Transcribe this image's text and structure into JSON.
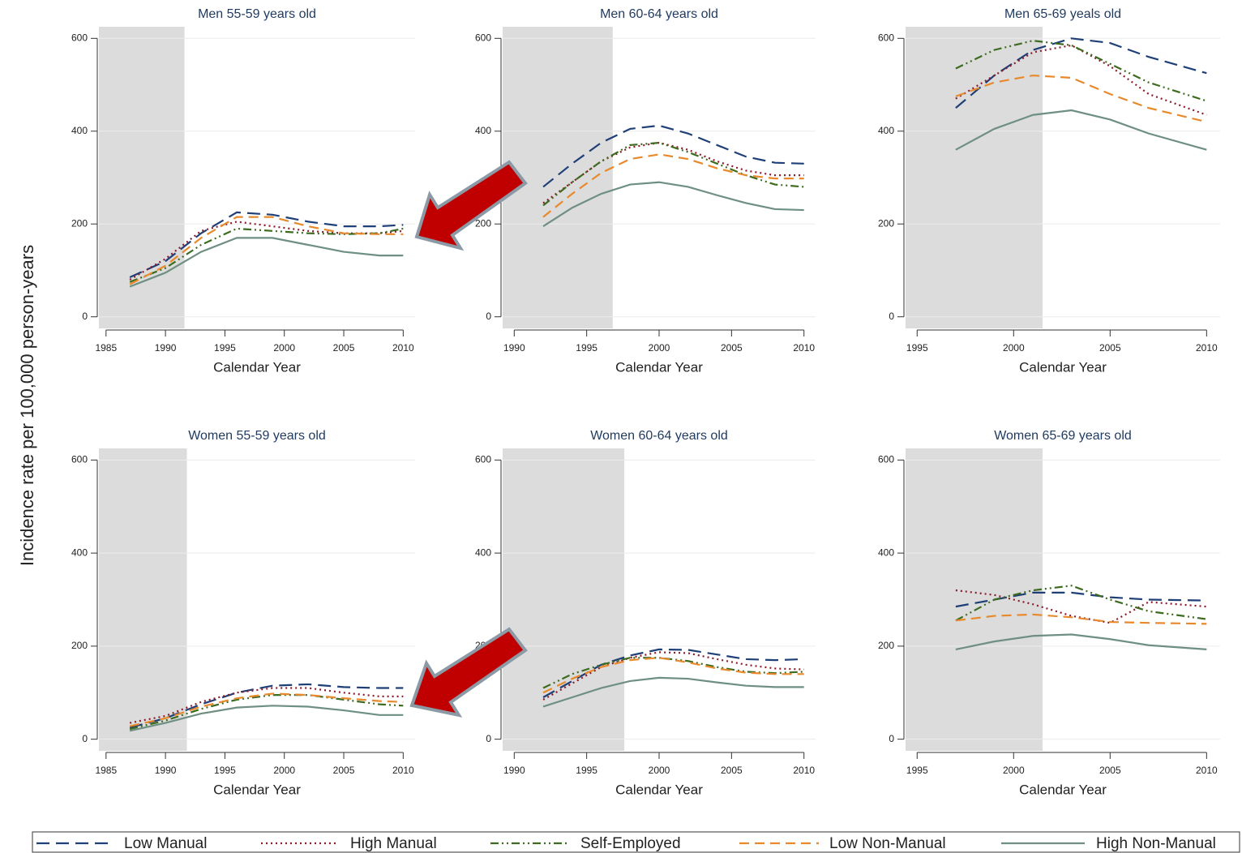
{
  "ylabel": "Incidence rate per 100,000 person-years",
  "chart_data": [
    {
      "type": "line",
      "title": "Men 55-59 years old",
      "xlabel": "Calendar Year",
      "x": [
        1987,
        1990,
        1993,
        1996,
        1999,
        2002,
        2005,
        2008,
        2010
      ],
      "xlim": [
        1984.4,
        2011
      ],
      "xticks": [
        1985,
        1990,
        1995,
        2000,
        2005,
        2010
      ],
      "ylim": [
        -25,
        625
      ],
      "yticks": [
        0,
        200,
        400,
        600
      ],
      "grid": true,
      "shade_until": 1991.6,
      "series": [
        {
          "name": "Low Manual",
          "color": "#1f3f77",
          "style": "long-dash",
          "values": [
            85,
            120,
            180,
            225,
            220,
            205,
            195,
            195,
            198
          ]
        },
        {
          "name": "High Manual",
          "color": "#8b1a2a",
          "style": "dotted",
          "values": [
            80,
            125,
            185,
            205,
            195,
            185,
            180,
            180,
            185
          ]
        },
        {
          "name": "Self-Employed",
          "color": "#3d6b1f",
          "style": "dash-dot",
          "values": [
            75,
            105,
            155,
            190,
            185,
            180,
            178,
            180,
            190
          ]
        },
        {
          "name": "Low Non-Manual",
          "color": "#e8892c",
          "style": "dashed",
          "values": [
            70,
            110,
            170,
            215,
            215,
            195,
            180,
            178,
            178
          ]
        },
        {
          "name": "High Non-Manual",
          "color": "#6e8f82",
          "style": "solid",
          "values": [
            65,
            95,
            140,
            170,
            170,
            155,
            140,
            132,
            132
          ]
        }
      ]
    },
    {
      "type": "line",
      "title": "Men 60-64 years old",
      "xlabel": "Calendar Year",
      "x": [
        1992,
        1994,
        1996,
        1998,
        2000,
        2002,
        2004,
        2006,
        2008,
        2010
      ],
      "xlim": [
        1989.2,
        2010.8
      ],
      "xticks": [
        1990,
        1995,
        2000,
        2005,
        2010
      ],
      "ylim": [
        -25,
        625
      ],
      "yticks": [
        0,
        200,
        400,
        600
      ],
      "grid": true,
      "shade_until": 1996.8,
      "series": [
        {
          "name": "Low Manual",
          "color": "#1f3f77",
          "style": "long-dash",
          "values": [
            280,
            330,
            375,
            405,
            412,
            395,
            370,
            345,
            332,
            330
          ]
        },
        {
          "name": "High Manual",
          "color": "#8b1a2a",
          "style": "dotted",
          "values": [
            245,
            290,
            335,
            365,
            375,
            360,
            335,
            315,
            305,
            305
          ]
        },
        {
          "name": "Self-Employed",
          "color": "#3d6b1f",
          "style": "dash-dot",
          "values": [
            240,
            290,
            335,
            370,
            375,
            355,
            330,
            305,
            285,
            280
          ]
        },
        {
          "name": "Low Non-Manual",
          "color": "#e8892c",
          "style": "dashed",
          "values": [
            215,
            265,
            310,
            340,
            350,
            340,
            320,
            305,
            298,
            298
          ]
        },
        {
          "name": "High Non-Manual",
          "color": "#6e8f82",
          "style": "solid",
          "values": [
            195,
            235,
            265,
            285,
            290,
            280,
            262,
            245,
            232,
            230
          ]
        }
      ]
    },
    {
      "type": "line",
      "title": "Men 65-69 yeals old",
      "xlabel": "Calendar Year",
      "x": [
        1997,
        1999,
        2001,
        2003,
        2005,
        2007,
        2010
      ],
      "xlim": [
        1994.4,
        2010.7
      ],
      "xticks": [
        1995,
        2000,
        2005,
        2010
      ],
      "ylim": [
        -25,
        625
      ],
      "yticks": [
        0,
        200,
        400,
        600
      ],
      "grid": true,
      "shade_until": 2001.5,
      "series": [
        {
          "name": "Low Manual",
          "color": "#1f3f77",
          "style": "long-dash",
          "values": [
            450,
            520,
            575,
            600,
            590,
            560,
            525
          ]
        },
        {
          "name": "High Manual",
          "color": "#8b1a2a",
          "style": "dotted",
          "values": [
            470,
            520,
            570,
            585,
            540,
            480,
            435
          ]
        },
        {
          "name": "Self-Employed",
          "color": "#3d6b1f",
          "style": "dash-dot",
          "values": [
            535,
            575,
            595,
            585,
            545,
            505,
            465
          ]
        },
        {
          "name": "Low Non-Manual",
          "color": "#e8892c",
          "style": "dashed",
          "values": [
            475,
            505,
            520,
            515,
            480,
            450,
            420
          ]
        },
        {
          "name": "High Non-Manual",
          "color": "#6e8f82",
          "style": "solid",
          "values": [
            360,
            405,
            435,
            445,
            425,
            395,
            360
          ]
        }
      ]
    },
    {
      "type": "line",
      "title": "Women 55-59 years old",
      "xlabel": "Calendar Year",
      "x": [
        1987,
        1990,
        1993,
        1996,
        1999,
        2002,
        2005,
        2008,
        2010
      ],
      "xlim": [
        1984.4,
        2011
      ],
      "xticks": [
        1985,
        1990,
        1995,
        2000,
        2005,
        2010
      ],
      "ylim": [
        -25,
        625
      ],
      "yticks": [
        0,
        200,
        400,
        600
      ],
      "grid": true,
      "shade_until": 1991.8,
      "series": [
        {
          "name": "Low Manual",
          "color": "#1f3f77",
          "style": "long-dash",
          "values": [
            25,
            45,
            75,
            100,
            115,
            118,
            112,
            110,
            110
          ]
        },
        {
          "name": "High Manual",
          "color": "#8b1a2a",
          "style": "dotted",
          "values": [
            35,
            50,
            80,
            100,
            110,
            110,
            100,
            92,
            92
          ]
        },
        {
          "name": "Self-Employed",
          "color": "#3d6b1f",
          "style": "dash-dot",
          "values": [
            22,
            40,
            65,
            85,
            95,
            95,
            85,
            75,
            72
          ]
        },
        {
          "name": "Low Non-Manual",
          "color": "#e8892c",
          "style": "dashed",
          "values": [
            28,
            45,
            70,
            88,
            98,
            95,
            88,
            82,
            80
          ]
        },
        {
          "name": "High Non-Manual",
          "color": "#6e8f82",
          "style": "solid",
          "values": [
            18,
            35,
            55,
            68,
            72,
            70,
            62,
            52,
            52
          ]
        }
      ]
    },
    {
      "type": "line",
      "title": "Women 60-64 years old",
      "xlabel": "Calendar Year",
      "x": [
        1992,
        1994,
        1996,
        1998,
        2000,
        2002,
        2004,
        2006,
        2008,
        2010
      ],
      "xlim": [
        1989.2,
        2010.8
      ],
      "xticks": [
        1990,
        1995,
        2000,
        2005,
        2010
      ],
      "ylim": [
        -25,
        625
      ],
      "yticks": [
        0,
        200,
        400,
        600
      ],
      "grid": true,
      "shade_until": 1997.6,
      "series": [
        {
          "name": "Low Manual",
          "color": "#1f3f77",
          "style": "long-dash",
          "values": [
            90,
            125,
            160,
            180,
            193,
            192,
            182,
            172,
            170,
            172
          ]
        },
        {
          "name": "High Manual",
          "color": "#8b1a2a",
          "style": "dotted",
          "values": [
            85,
            120,
            155,
            175,
            187,
            185,
            172,
            160,
            152,
            150
          ]
        },
        {
          "name": "Self-Employed",
          "color": "#3d6b1f",
          "style": "dash-dot",
          "values": [
            110,
            140,
            160,
            175,
            175,
            168,
            155,
            145,
            142,
            145
          ]
        },
        {
          "name": "Low Non-Manual",
          "color": "#e8892c",
          "style": "dashed",
          "values": [
            100,
            130,
            155,
            170,
            175,
            165,
            152,
            143,
            140,
            140
          ]
        },
        {
          "name": "High Non-Manual",
          "color": "#6e8f82",
          "style": "solid",
          "values": [
            70,
            90,
            110,
            125,
            132,
            130,
            122,
            115,
            112,
            112
          ]
        }
      ]
    },
    {
      "type": "line",
      "title": "Women 65-69 years old",
      "xlabel": "Calendar Year",
      "x": [
        1997,
        1999,
        2001,
        2003,
        2005,
        2007,
        2010
      ],
      "xlim": [
        1994.4,
        2010.7
      ],
      "xticks": [
        1995,
        2000,
        2005,
        2010
      ],
      "ylim": [
        -25,
        625
      ],
      "yticks": [
        0,
        200,
        400,
        600
      ],
      "grid": true,
      "shade_until": 2001.5,
      "series": [
        {
          "name": "Low Manual",
          "color": "#1f3f77",
          "style": "long-dash",
          "values": [
            285,
            300,
            315,
            315,
            305,
            300,
            298
          ]
        },
        {
          "name": "High Manual",
          "color": "#8b1a2a",
          "style": "dotted",
          "values": [
            320,
            310,
            290,
            265,
            250,
            295,
            285
          ]
        },
        {
          "name": "Self-Employed",
          "color": "#3d6b1f",
          "style": "dash-dot",
          "values": [
            255,
            300,
            320,
            330,
            300,
            275,
            258
          ]
        },
        {
          "name": "Low Non-Manual",
          "color": "#e8892c",
          "style": "dashed",
          "values": [
            255,
            265,
            268,
            262,
            252,
            250,
            248
          ]
        },
        {
          "name": "High Non-Manual",
          "color": "#6e8f82",
          "style": "solid",
          "values": [
            193,
            210,
            222,
            225,
            215,
            202,
            193
          ]
        }
      ]
    }
  ]
}
